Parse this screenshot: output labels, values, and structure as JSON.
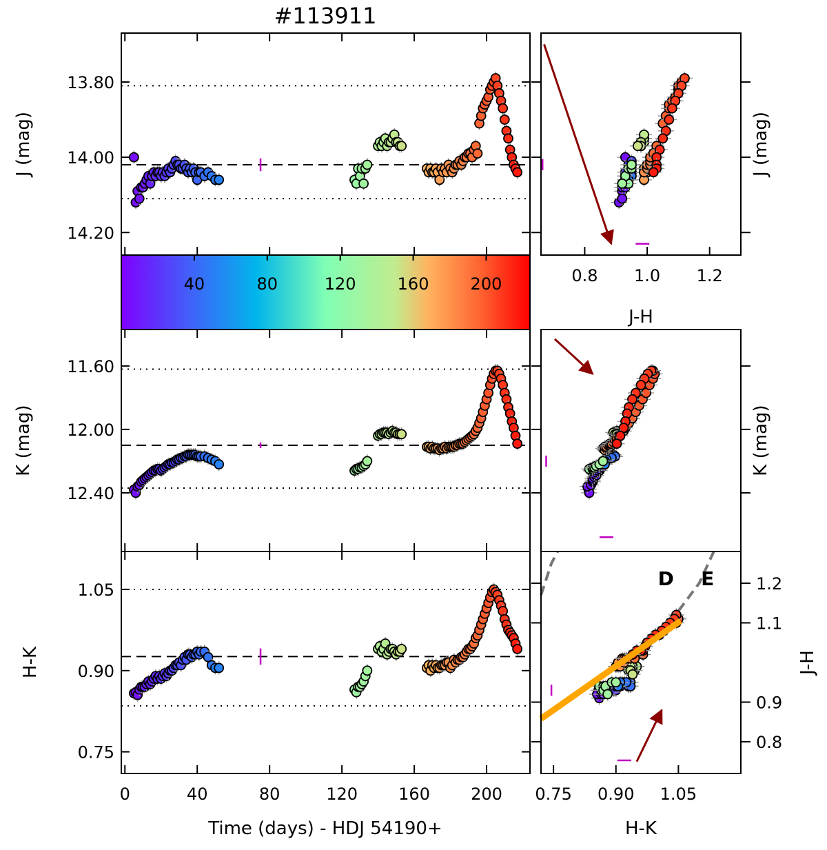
{
  "chart_data": [
    {
      "id": "lc_J",
      "type": "scatter",
      "title": "#113911",
      "ylabel": "J (mag)",
      "xlim": [
        -2,
        224
      ],
      "ylim": [
        14.26,
        13.67
      ],
      "y_inverted": true,
      "yticks": [
        13.8,
        14.0,
        14.2
      ],
      "ytick_labels": [
        "13.80",
        "14.00",
        "14.20"
      ],
      "mean": 14.02,
      "sigma_lines": [
        13.81,
        14.11
      ],
      "error_marker": {
        "x": 75,
        "y": 14.02,
        "size": 0.017
      }
    },
    {
      "id": "colorbar",
      "type": "colorbar",
      "colormap": "rainbow",
      "range": [
        0,
        224
      ],
      "ticks": [
        40,
        80,
        120,
        160,
        200
      ],
      "tick_labels": [
        "40",
        "80",
        "120",
        "160",
        "200"
      ]
    },
    {
      "id": "lc_K",
      "type": "scatter",
      "ylabel": "K (mag)",
      "xlim": [
        -2,
        224
      ],
      "ylim": [
        12.77,
        11.37
      ],
      "y_inverted": true,
      "yticks": [
        11.6,
        12.0,
        12.4
      ],
      "ytick_labels": [
        "11.60",
        "12.00",
        "12.40"
      ],
      "mean": 12.1,
      "sigma_lines": [
        11.62,
        12.37
      ],
      "error_marker": {
        "x": 75,
        "y": 12.1,
        "size": 0.018
      }
    },
    {
      "id": "lc_HK",
      "type": "scatter",
      "ylabel": "H-K",
      "xlabel": "Time (days) - HDJ 54190+",
      "xlim": [
        -2,
        224
      ],
      "ylim": [
        0.71,
        1.12
      ],
      "xticks": [
        0,
        40,
        80,
        120,
        160,
        200
      ],
      "xtick_labels": [
        "0",
        "40",
        "80",
        "120",
        "160",
        "200"
      ],
      "yticks": [
        0.75,
        0.9,
        1.05
      ],
      "ytick_labels": [
        "0.75",
        "0.90",
        "1.05"
      ],
      "mean": 0.926,
      "sigma_lines": [
        0.835,
        1.05
      ],
      "error_marker": {
        "x": 75,
        "y": 0.926,
        "size": 0.015
      }
    },
    {
      "id": "cmd_J",
      "type": "scatter",
      "xlabel": "J-H",
      "ylabel": "J (mag)",
      "xlim": [
        0.66,
        1.3
      ],
      "ylim": [
        14.26,
        13.67
      ],
      "y_inverted": true,
      "xticks": [
        0.8,
        1.0,
        1.2
      ],
      "xtick_labels": [
        "0.8",
        "1.0",
        "1.2"
      ],
      "yticks": [
        13.8,
        14.0,
        14.2
      ],
      "ytick_labels": [
        "13.80",
        "14.00",
        "14.20"
      ],
      "reddening_arrow": {
        "from": [
          0.67,
          13.7
        ],
        "to": [
          0.885,
          14.23
        ]
      },
      "error_markers": [
        {
          "x": 0.665,
          "y": 14.02,
          "orient": "v"
        },
        {
          "x": 0.985,
          "y": 14.23,
          "orient": "h"
        }
      ]
    },
    {
      "id": "cmd_K",
      "type": "scatter",
      "ylabel": "K (mag)",
      "xlim": [
        0.72,
        1.3
      ],
      "ylim": [
        12.77,
        11.37
      ],
      "y_inverted": true,
      "yticks": [
        11.6,
        12.0,
        12.4
      ],
      "ytick_labels": [
        "11.60",
        "12.00",
        "12.40"
      ],
      "reddening_arrow": {
        "from": [
          0.76,
          11.43
        ],
        "to": [
          0.87,
          11.65
        ]
      },
      "error_markers": [
        {
          "x": 0.735,
          "y": 12.2,
          "orient": "v"
        },
        {
          "x": 0.91,
          "y": 12.68,
          "orient": "h"
        }
      ]
    },
    {
      "id": "ccd",
      "type": "scatter",
      "xlabel": "H-K",
      "ylabel": "J-H",
      "xlim": [
        0.72,
        1.2
      ],
      "ylim": [
        0.72,
        1.28
      ],
      "xticks": [
        0.75,
        0.9,
        1.05
      ],
      "xtick_labels": [
        "0.75",
        "0.90",
        "1.05"
      ],
      "yticks": [
        0.8,
        0.9,
        1.1,
        1.2
      ],
      "ytick_labels": [
        "0.8",
        "0.9",
        "1.1",
        "1.2"
      ],
      "annotations": [
        {
          "text": "D",
          "x": 1.02,
          "y": 1.195
        },
        {
          "text": "E",
          "x": 1.12,
          "y": 1.195
        }
      ],
      "fit_line": {
        "from": [
          0.72,
          0.858
        ],
        "to": [
          1.055,
          1.105
        ],
        "color": "#ffa500"
      },
      "dashed_curves": [
        [
          [
            0.72,
            1.17
          ],
          [
            0.745,
            1.25
          ],
          [
            0.76,
            1.28
          ]
        ],
        [
          [
            1.05,
            1.13
          ],
          [
            1.1,
            1.2
          ],
          [
            1.135,
            1.28
          ]
        ]
      ],
      "reddening_arrow": {
        "from": [
          0.95,
          0.75
        ],
        "to": [
          1.01,
          0.88
        ]
      },
      "error_markers": [
        {
          "x": 0.745,
          "y": 0.93,
          "orient": "v"
        },
        {
          "x": 0.92,
          "y": 0.753,
          "orient": "h"
        }
      ]
    }
  ],
  "observations": [
    [
      5,
      14.0,
      12.38,
      0.858,
      0.93
    ],
    [
      6,
      14.12,
      12.4,
      0.86,
      0.91
    ],
    [
      7,
      14.09,
      12.36,
      0.855,
      0.92
    ],
    [
      8,
      14.11,
      12.35,
      0.865,
      0.92
    ],
    [
      9,
      14.08,
      12.33,
      0.87,
      0.92
    ],
    [
      10,
      14.08,
      12.32,
      0.87,
      0.93
    ],
    [
      11,
      14.07,
      12.31,
      0.87,
      0.93
    ],
    [
      12,
      14.06,
      12.3,
      0.875,
      0.93
    ],
    [
      13,
      14.05,
      12.29,
      0.88,
      0.93
    ],
    [
      14,
      14.07,
      12.28,
      0.875,
      0.93
    ],
    [
      15,
      14.05,
      12.27,
      0.88,
      0.94
    ],
    [
      16,
      14.04,
      12.26,
      0.885,
      0.94
    ],
    [
      17,
      14.05,
      12.26,
      0.89,
      0.94
    ],
    [
      18,
      14.04,
      12.25,
      0.885,
      0.94
    ],
    [
      19,
      14.04,
      12.25,
      0.89,
      0.94
    ],
    [
      20,
      14.05,
      12.26,
      0.885,
      0.93
    ],
    [
      21,
      14.04,
      12.25,
      0.89,
      0.94
    ],
    [
      22,
      14.05,
      12.24,
      0.895,
      0.93
    ],
    [
      23,
      14.04,
      12.23,
      0.89,
      0.94
    ],
    [
      24,
      14.03,
      12.22,
      0.895,
      0.94
    ],
    [
      25,
      14.04,
      12.22,
      0.9,
      0.93
    ],
    [
      26,
      14.03,
      12.21,
      0.9,
      0.94
    ],
    [
      27,
      14.02,
      12.21,
      0.905,
      0.94
    ],
    [
      28,
      14.01,
      12.2,
      0.91,
      0.95
    ],
    [
      29,
      14.02,
      12.19,
      0.91,
      0.95
    ],
    [
      30,
      14.02,
      12.19,
      0.915,
      0.95
    ],
    [
      31,
      14.03,
      12.18,
      0.91,
      0.94
    ],
    [
      32,
      14.03,
      12.18,
      0.92,
      0.95
    ],
    [
      33,
      14.02,
      12.17,
      0.925,
      0.95
    ],
    [
      34,
      14.03,
      12.17,
      0.92,
      0.95
    ],
    [
      35,
      14.04,
      12.16,
      0.93,
      0.95
    ],
    [
      36,
      14.03,
      12.16,
      0.93,
      0.94
    ],
    [
      37,
      14.04,
      12.16,
      0.925,
      0.95
    ],
    [
      38,
      14.03,
      12.16,
      0.93,
      0.94
    ],
    [
      39,
      14.04,
      12.16,
      0.93,
      0.95
    ],
    [
      40,
      14.06,
      12.17,
      0.935,
      0.94
    ],
    [
      41,
      14.04,
      12.17,
      0.93,
      0.94
    ],
    [
      42,
      14.04,
      12.17,
      0.935,
      0.95
    ],
    [
      44,
      14.05,
      12.17,
      0.935,
      0.94
    ],
    [
      46,
      14.04,
      12.18,
      0.925,
      0.95
    ],
    [
      48,
      14.05,
      12.19,
      0.91,
      0.95
    ],
    [
      50,
      14.06,
      12.2,
      0.905,
      0.94
    ],
    [
      52,
      14.06,
      12.22,
      0.905,
      0.94
    ],
    [
      127,
      14.06,
      12.26,
      0.865,
      0.93
    ],
    [
      128,
      14.07,
      12.25,
      0.86,
      0.94
    ],
    [
      129,
      14.03,
      12.25,
      0.87,
      0.94
    ],
    [
      130,
      14.05,
      12.24,
      0.87,
      0.93
    ],
    [
      131,
      14.03,
      12.24,
      0.875,
      0.94
    ],
    [
      132,
      14.07,
      12.23,
      0.88,
      0.92
    ],
    [
      133,
      14.03,
      12.22,
      0.89,
      0.95
    ],
    [
      134,
      14.02,
      12.2,
      0.9,
      0.95
    ],
    [
      140,
      13.97,
      12.04,
      0.94,
      0.98
    ],
    [
      141,
      13.96,
      12.03,
      0.945,
      0.98
    ],
    [
      142,
      13.97,
      12.03,
      0.935,
      0.98
    ],
    [
      143,
      13.96,
      12.02,
      0.94,
      0.99
    ],
    [
      144,
      13.95,
      12.02,
      0.95,
      0.99
    ],
    [
      145,
      13.97,
      12.02,
      0.93,
      0.98
    ],
    [
      146,
      13.96,
      12.03,
      0.935,
      0.98
    ],
    [
      147,
      13.96,
      12.02,
      0.94,
      0.98
    ],
    [
      148,
      13.95,
      12.01,
      0.94,
      0.99
    ],
    [
      149,
      13.94,
      12.02,
      0.935,
      0.99
    ],
    [
      150,
      13.96,
      12.02,
      0.93,
      0.98
    ],
    [
      151,
      13.96,
      12.03,
      0.935,
      0.98
    ],
    [
      152,
      13.97,
      12.03,
      0.935,
      0.98
    ],
    [
      153,
      13.97,
      12.03,
      0.94,
      0.97
    ],
    [
      167,
      14.03,
      12.11,
      0.905,
      0.99
    ],
    [
      168,
      14.04,
      12.11,
      0.91,
      0.99
    ],
    [
      169,
      14.03,
      12.12,
      0.9,
      0.99
    ],
    [
      170,
      14.04,
      12.11,
      0.91,
      0.99
    ],
    [
      171,
      14.04,
      12.12,
      0.905,
      1.0
    ],
    [
      172,
      14.03,
      12.12,
      0.91,
      0.99
    ],
    [
      173,
      14.04,
      12.12,
      0.905,
      0.99
    ],
    [
      174,
      14.06,
      12.13,
      0.905,
      0.99
    ],
    [
      175,
      14.03,
      12.12,
      0.91,
      1.0
    ],
    [
      176,
      14.04,
      12.12,
      0.91,
      0.99
    ],
    [
      177,
      14.03,
      12.11,
      0.91,
      1.0
    ],
    [
      178,
      14.04,
      12.12,
      0.915,
      1.0
    ],
    [
      179,
      14.02,
      12.11,
      0.915,
      1.0
    ],
    [
      180,
      14.03,
      12.11,
      0.905,
      1.0
    ],
    [
      181,
      14.04,
      12.11,
      0.91,
      0.99
    ],
    [
      182,
      14.03,
      12.11,
      0.92,
      1.0
    ],
    [
      183,
      14.02,
      12.1,
      0.915,
      1.01
    ],
    [
      184,
      14.02,
      12.1,
      0.92,
      1.0
    ],
    [
      185,
      14.01,
      12.09,
      0.92,
      1.01
    ],
    [
      186,
      14.02,
      12.09,
      0.925,
      1.01
    ],
    [
      187,
      14.01,
      12.09,
      0.925,
      1.01
    ],
    [
      188,
      14.0,
      12.08,
      0.93,
      1.01
    ],
    [
      189,
      14.0,
      12.07,
      0.935,
      1.01
    ],
    [
      190,
      13.99,
      12.06,
      0.94,
      1.02
    ],
    [
      191,
      13.99,
      12.05,
      0.94,
      1.02
    ],
    [
      192,
      14.0,
      12.04,
      0.945,
      1.01
    ],
    [
      193,
      13.98,
      12.03,
      0.95,
      1.03
    ],
    [
      194,
      13.97,
      12.01,
      0.96,
      1.03
    ],
    [
      195,
      13.99,
      11.99,
      0.965,
      1.02
    ],
    [
      196,
      13.91,
      11.96,
      0.975,
      1.05
    ],
    [
      197,
      13.89,
      11.93,
      0.985,
      1.06
    ],
    [
      198,
      13.87,
      11.89,
      0.995,
      1.07
    ],
    [
      199,
      13.86,
      11.85,
      1.005,
      1.07
    ],
    [
      200,
      13.85,
      11.81,
      1.015,
      1.08
    ],
    [
      201,
      13.84,
      11.77,
      1.025,
      1.09
    ],
    [
      202,
      13.82,
      11.72,
      1.035,
      1.1
    ],
    [
      203,
      13.81,
      11.68,
      1.045,
      1.1
    ],
    [
      204,
      13.8,
      11.65,
      1.05,
      1.11
    ],
    [
      205,
      13.79,
      11.63,
      1.045,
      1.12
    ],
    [
      206,
      13.81,
      11.63,
      1.04,
      1.11
    ],
    [
      207,
      13.83,
      11.65,
      1.03,
      1.1
    ],
    [
      208,
      13.85,
      11.68,
      1.02,
      1.09
    ],
    [
      209,
      13.87,
      11.72,
      1.01,
      1.08
    ],
    [
      210,
      13.9,
      11.77,
      0.995,
      1.07
    ],
    [
      211,
      13.93,
      11.81,
      0.985,
      1.06
    ],
    [
      212,
      13.95,
      11.86,
      0.975,
      1.05
    ],
    [
      213,
      13.98,
      11.9,
      0.97,
      1.04
    ],
    [
      214,
      14.0,
      11.95,
      0.965,
      1.03
    ],
    [
      215,
      14.02,
      11.99,
      0.96,
      1.03
    ],
    [
      216,
      14.03,
      12.04,
      0.95,
      1.03
    ],
    [
      217,
      14.04,
      12.09,
      0.94,
      1.02
    ]
  ]
}
